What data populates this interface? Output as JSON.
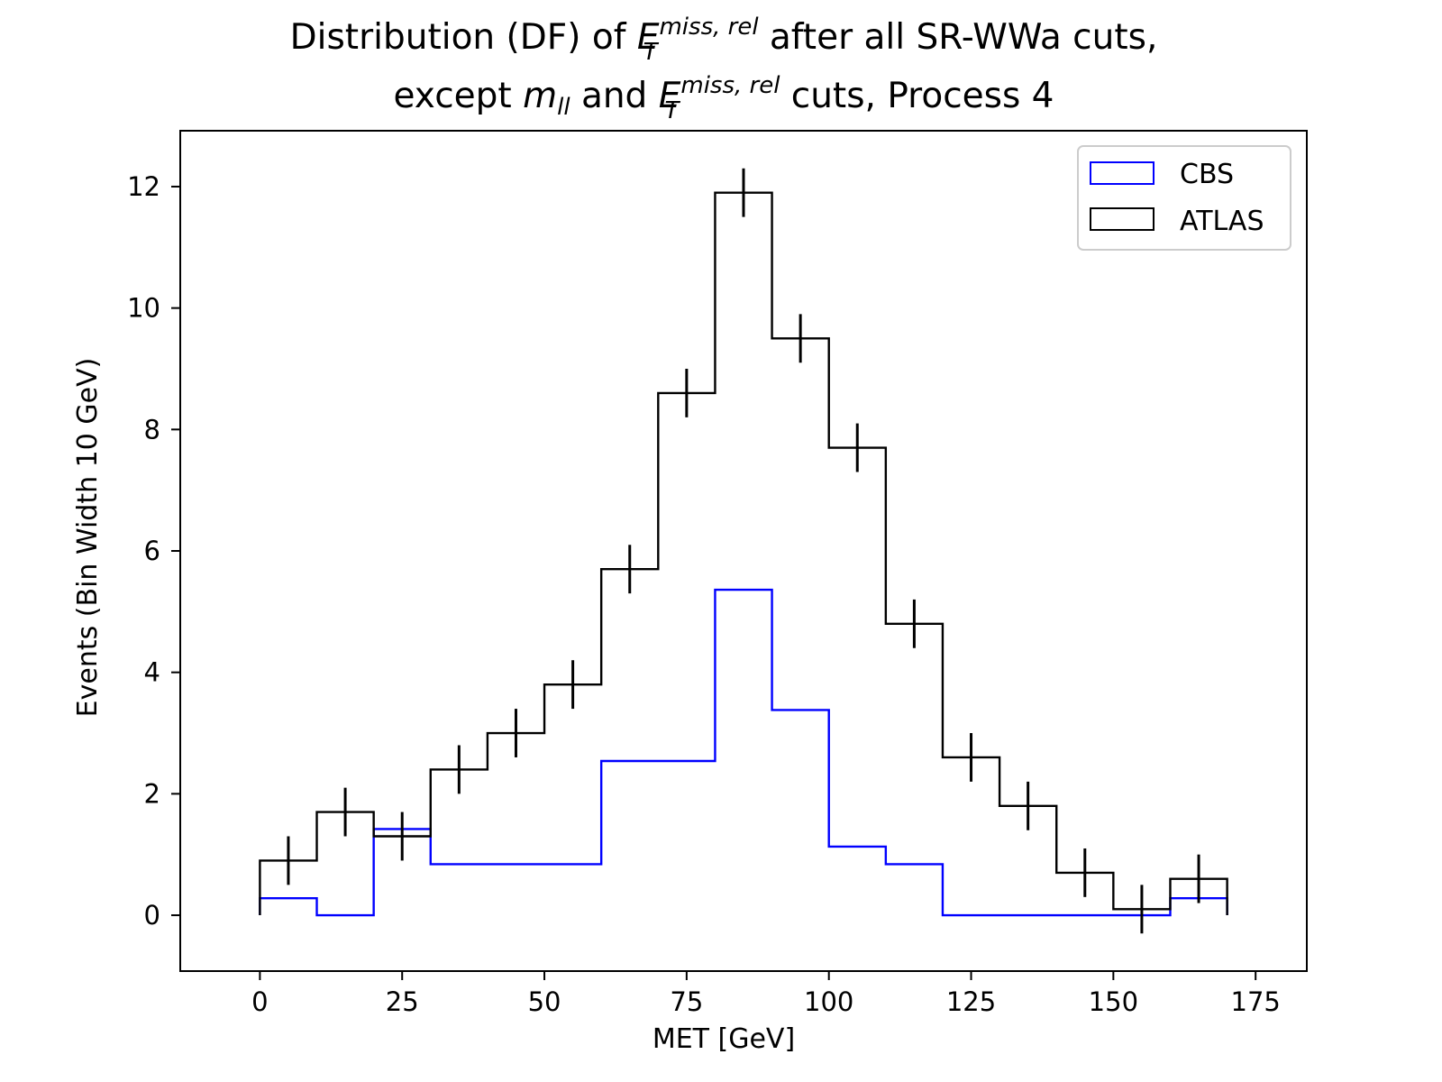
{
  "chart_data": {
    "type": "histogram-step",
    "title": {
      "line1": {
        "before": "Distribution (DF) of ",
        "symbol": "E",
        "sup": "miss, rel",
        "sub": "T",
        "after": " after all SR-WWa cuts,"
      },
      "line2": {
        "before": "except ",
        "symbol1": "m",
        "sub1": "ll",
        "middle": " and ",
        "symbol2": "E",
        "sup2": "miss, rel",
        "sub2": "T",
        "after": " cuts, Process 4"
      }
    },
    "xlabel": "MET [GeV]",
    "ylabel": "Events (Bin Width 10 GeV)",
    "xlim": [
      -14,
      184
    ],
    "ylim": [
      -0.92,
      12.92
    ],
    "xticks": [
      0,
      25,
      50,
      75,
      100,
      125,
      150,
      175
    ],
    "yticks": [
      0,
      2,
      4,
      6,
      8,
      10,
      12
    ],
    "bin_edges": [
      0,
      10,
      20,
      30,
      40,
      50,
      60,
      70,
      80,
      90,
      100,
      110,
      120,
      130,
      140,
      150,
      160,
      170
    ],
    "series": [
      {
        "name": "CBS",
        "color": "#0000ff",
        "values": [
          0.28,
          0.0,
          1.42,
          0.84,
          0.84,
          0.84,
          2.54,
          2.54,
          5.36,
          3.38,
          1.13,
          0.84,
          0.0,
          0.0,
          0.0,
          0.0,
          0.28
        ]
      },
      {
        "name": "ATLAS",
        "color": "#000000",
        "values": [
          0.9,
          1.7,
          1.3,
          2.4,
          3.0,
          3.8,
          5.7,
          8.6,
          11.9,
          9.5,
          7.7,
          4.8,
          2.6,
          1.8,
          0.7,
          0.1,
          0.6
        ],
        "errors": [
          0.4,
          0.4,
          0.4,
          0.4,
          0.4,
          0.4,
          0.4,
          0.4,
          0.4,
          0.4,
          0.4,
          0.4,
          0.4,
          0.4,
          0.4,
          0.4,
          0.4
        ]
      }
    ],
    "legend": {
      "placement": "top-right",
      "entries": [
        "CBS",
        "ATLAS"
      ]
    },
    "grid": false
  }
}
